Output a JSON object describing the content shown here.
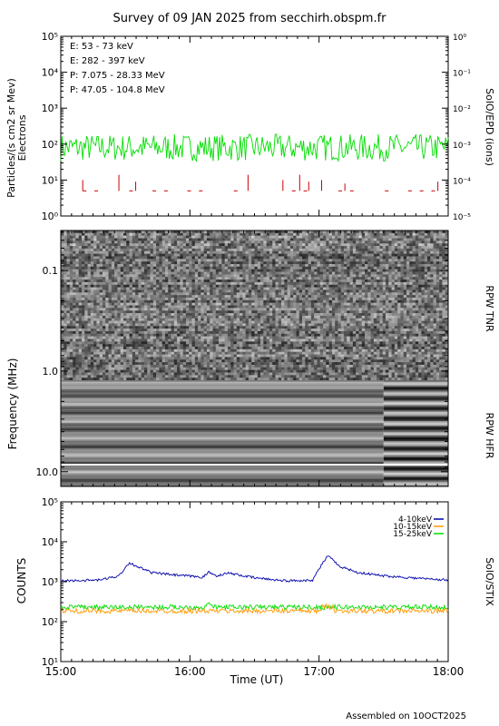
{
  "title": "Survey of 09 JAN 2025 from secchirh.obspm.fr",
  "footer": "Assembled on 10OCT2025",
  "xaxis": {
    "label": "Time (UT)",
    "ticks": [
      "15:00",
      "16:00",
      "17:00",
      "18:00"
    ],
    "range_hours": [
      15,
      18
    ]
  },
  "colors": {
    "green": "#00dd00",
    "red": "#cc0000",
    "black": "#000000",
    "blue": "#0000aa",
    "orange": "#ff9900"
  },
  "chart_data": [
    {
      "type": "line",
      "panel": "epd",
      "ylabel": "Particles/(s cm2 sr Mev)",
      "ylabel2": "Electrons",
      "right_label": "SolO/EPD (ions)",
      "y_scale": "log",
      "ylim": [
        1,
        100000
      ],
      "y_ticks": [
        "10⁰",
        "10¹",
        "10²",
        "10³",
        "10⁴",
        "10⁵"
      ],
      "y2lim": [
        1e-05,
        1
      ],
      "y2_ticks": [
        "10⁻⁵",
        "10⁻⁴",
        "10⁻³",
        "10⁻²",
        "10⁻¹",
        "10⁰"
      ],
      "legend": [
        {
          "label": "E: 53 - 73 keV",
          "color": "#00dd00"
        },
        {
          "label": "E: 282 - 397 keV",
          "color": "#cc0000"
        },
        {
          "label": "P: 7.075 - 28.33 MeV",
          "color": "#000000"
        },
        {
          "label": "P: 47.05 - 104.8 MeV",
          "color": "#0000aa"
        }
      ],
      "series": [
        {
          "label_ref": "E: 53 - 73 keV",
          "typical": 80,
          "min": 30,
          "max": 200
        },
        {
          "label_ref": "E: 282 - 397 keV",
          "baseline": 5,
          "spikes": [
            {
              "t": 15.17,
              "v": 10
            },
            {
              "t": 15.45,
              "v": 14
            },
            {
              "t": 15.58,
              "v": 9
            },
            {
              "t": 16.45,
              "v": 14
            },
            {
              "t": 16.72,
              "v": 10
            },
            {
              "t": 16.85,
              "v": 14
            },
            {
              "t": 16.92,
              "v": 9
            },
            {
              "t": 17.02,
              "v": 10
            },
            {
              "t": 17.2,
              "v": 8
            },
            {
              "t": 17.92,
              "v": 9
            }
          ]
        }
      ]
    },
    {
      "type": "heatmap",
      "panel": "rpw",
      "ylabel": "Frequency (MHz)",
      "y_scale": "log",
      "ylim": [
        0.04,
        14
      ],
      "y_ticks": [
        "0.1",
        "1.0",
        "10.0"
      ],
      "right_labels": [
        "RPW TNR",
        "RPW HFR"
      ]
    },
    {
      "type": "line",
      "panel": "stix",
      "ylabel": "COUNTS",
      "right_label": "SolO/STIX",
      "y_scale": "log",
      "ylim": [
        10,
        100000
      ],
      "y_ticks": [
        "10¹",
        "10²",
        "10³",
        "10⁴",
        "10⁵"
      ],
      "legend": [
        {
          "label": "4-10keV",
          "color": "#0000aa"
        },
        {
          "label": "10-15keV",
          "color": "#ff9900"
        },
        {
          "label": "15-25keV",
          "color": "#00dd00"
        }
      ],
      "series": [
        {
          "label_ref": "4-10keV",
          "points": [
            [
              15.0,
              1050
            ],
            [
              15.3,
              1100
            ],
            [
              15.45,
              1400
            ],
            [
              15.53,
              3000
            ],
            [
              15.58,
              2500
            ],
            [
              15.7,
              1700
            ],
            [
              15.9,
              1450
            ],
            [
              16.1,
              1300
            ],
            [
              16.15,
              1750
            ],
            [
              16.2,
              1400
            ],
            [
              16.3,
              1650
            ],
            [
              16.5,
              1250
            ],
            [
              16.75,
              1050
            ],
            [
              16.95,
              1100
            ],
            [
              17.02,
              2700
            ],
            [
              17.07,
              4500
            ],
            [
              17.15,
              2500
            ],
            [
              17.3,
              1700
            ],
            [
              17.5,
              1400
            ],
            [
              17.8,
              1200
            ],
            [
              18.0,
              1100
            ]
          ]
        },
        {
          "label_ref": "10-15keV",
          "typical": 185
        },
        {
          "label_ref": "15-25keV",
          "typical": 230
        }
      ]
    }
  ]
}
